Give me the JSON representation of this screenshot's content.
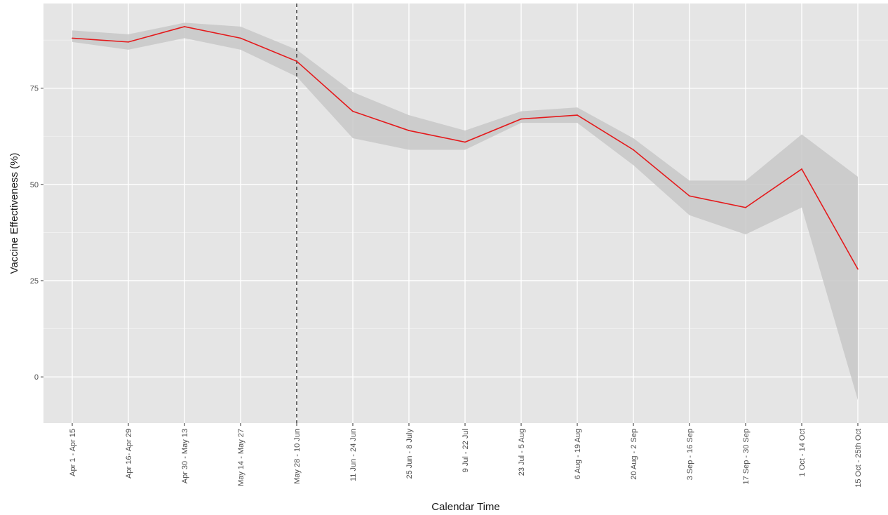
{
  "chart_data": {
    "type": "line",
    "title": "",
    "xlabel": "Calendar Time",
    "ylabel": "Vaccine Effectiveness (%)",
    "categories": [
      "Apr 1 - Apr 15",
      "Apr 16- Apr 29",
      "Apr 30 - May 13",
      "May 14 - May 27",
      "May 28 - 10 Jun",
      "11 Jun - 24 Jun",
      "25 Jun - 8 July",
      "9 Jul - 22 Jul",
      "23 Jul - 5 Aug",
      "6 Aug - 19 Aug",
      "20 Aug - 2 Sep",
      "3 Sep - 16 Sep",
      "17 Sep - 30 Sep",
      "1 Oct - 14 Oct",
      "15 Oct - 25th Oct"
    ],
    "series": [
      {
        "values": [
          88,
          87,
          91,
          88,
          82,
          69,
          64,
          61,
          67,
          68,
          59,
          47,
          44,
          54,
          28
        ],
        "lower": [
          87,
          85,
          88,
          85,
          78,
          62,
          59,
          59,
          66,
          66,
          55,
          42,
          37,
          44,
          -6
        ],
        "upper": [
          90,
          89,
          92,
          91,
          85,
          74,
          68,
          64,
          69,
          70,
          62,
          51,
          51,
          63,
          52
        ],
        "color": "#e41a1c"
      }
    ],
    "ylim": [
      -12,
      97
    ],
    "yticks": [
      0,
      25,
      50,
      75
    ],
    "reference_line": {
      "category": "May 28 - 10 Jun",
      "style": "dashed",
      "color": "#333333"
    },
    "band_color": "#c8c8c8",
    "panel_background": "#e5e5e5",
    "grid": true,
    "legend": "none"
  }
}
